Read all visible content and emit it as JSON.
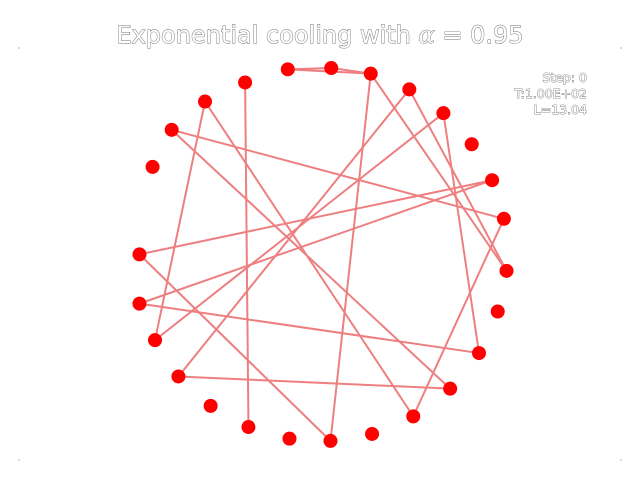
{
  "chart_data": {
    "type": "scatter",
    "title_prefix": "Exponential cooling with ",
    "title_alpha": "α",
    "title_suffix": " = 0.95",
    "axes_visible": false,
    "grid": false,
    "xlim": [
      -1.1,
      1.1
    ],
    "ylim": [
      -1.1,
      1.1
    ],
    "colors": {
      "city": "#ff0000",
      "edge": "#ee7f80"
    },
    "cities": [
      {
        "x": 0.06,
        "y": 0.993
      },
      {
        "x": 0.271,
        "y": 0.963
      },
      {
        "x": 0.477,
        "y": 0.879
      },
      {
        "x": 0.659,
        "y": 0.752
      },
      {
        "x": 0.81,
        "y": 0.586
      },
      {
        "x": 0.919,
        "y": 0.394
      },
      {
        "x": 0.982,
        "y": 0.188
      },
      {
        "x": 0.996,
        "y": -0.09
      },
      {
        "x": 0.949,
        "y": -0.307
      },
      {
        "x": 0.849,
        "y": -0.529
      },
      {
        "x": 0.695,
        "y": -0.719
      },
      {
        "x": 0.498,
        "y": -0.867
      },
      {
        "x": 0.278,
        "y": -0.961
      },
      {
        "x": 0.056,
        "y": -0.998
      },
      {
        "x": -0.163,
        "y": -0.986
      },
      {
        "x": -0.382,
        "y": -0.924
      },
      {
        "x": -0.584,
        "y": -0.811
      },
      {
        "x": -0.756,
        "y": -0.654
      },
      {
        "x": -0.881,
        "y": -0.46
      },
      {
        "x": -0.964,
        "y": -0.265
      },
      {
        "x": -0.964,
        "y": -0.002
      },
      {
        "x": -0.894,
        "y": 0.465
      },
      {
        "x": -0.792,
        "y": 0.663
      },
      {
        "x": -0.614,
        "y": 0.814
      },
      {
        "x": -0.4,
        "y": 0.916
      },
      {
        "x": -0.172,
        "y": 0.986
      }
    ],
    "tour": [
      0,
      12,
      25,
      23,
      15,
      21,
      17,
      16,
      4,
      14,
      0
    ],
    "tour_edges": [
      [
        1,
        13
      ],
      [
        13,
        20
      ],
      [
        20,
        5
      ],
      [
        5,
        19
      ],
      [
        19,
        9
      ],
      [
        9,
        3
      ],
      [
        3,
        18
      ],
      [
        18,
        23
      ],
      [
        23,
        11
      ],
      [
        11,
        6
      ],
      [
        6,
        22
      ],
      [
        22,
        10
      ],
      [
        10,
        17
      ],
      [
        17,
        2
      ],
      [
        2,
        7
      ],
      [
        7,
        1
      ],
      [
        24,
        24
      ]
    ],
    "tour_edges_extra": [
      [
        1,
        0
      ],
      [
        1,
        25
      ],
      [
        25,
        0
      ],
      [
        24,
        15
      ]
    ]
  },
  "annotation": {
    "step_label": "Step: 0",
    "temperature_label": "T:1.00E+02",
    "length_label": "L=13.04"
  }
}
